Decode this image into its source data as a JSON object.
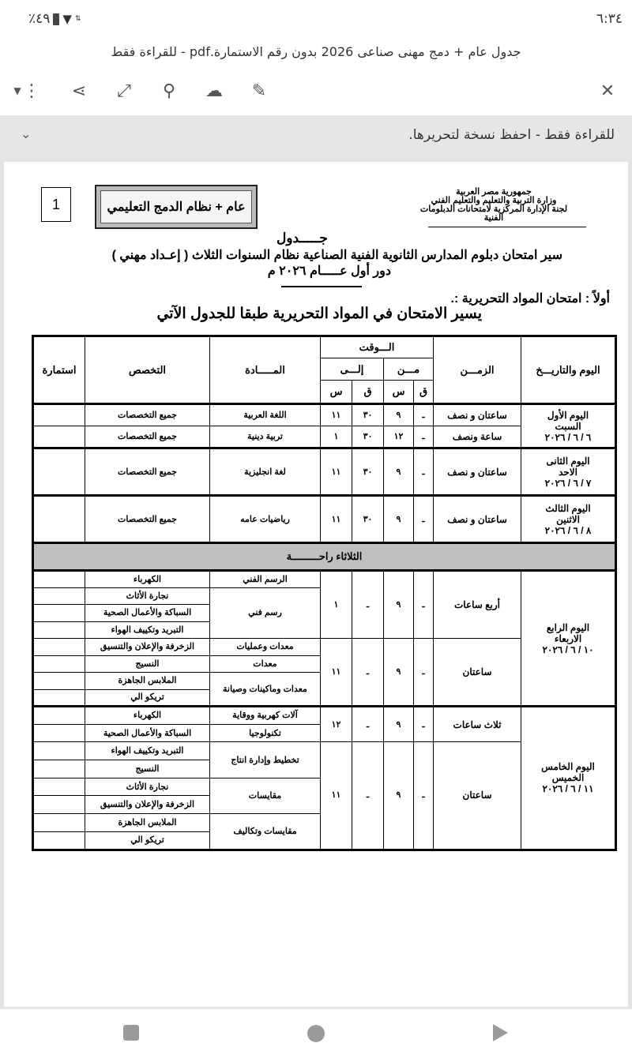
{
  "status_bar": {
    "time": "٦:٣٤",
    "battery": "٪٤٩"
  },
  "viewer": {
    "file_title": "جدول عام + دمج مهنى صناعى 2026 بدون رقم الاستمارة.pdf - للقراءة فقط",
    "readonly_banner": "للقراءة فقط - احفظ نسخة لتحريرها.",
    "icons": [
      "close-icon",
      "edit-icon",
      "cloud-upload-icon",
      "search-icon",
      "fullscreen-icon",
      "share-icon",
      "more-icon",
      "dropdown-icon"
    ]
  },
  "document": {
    "header_lines": [
      "جمهورية مصر العربية",
      "وزارة التربية والتعليم والتعليم الفني",
      "لجنة الإدارة المركزية لامتحانات الدبلومات الفنية"
    ],
    "badge": "عام + نظام الدمج التعليمي",
    "page_number": "1",
    "title": "جـــــدول",
    "subtitle": "سير امتحان دبلوم المدارس الثانوية الفنية الصناعية  نظام السنوات الثلاث ( إعـداد مهني )",
    "session": "دور أول  عـــــام  ٢٠٢٦ م",
    "section": "أولاً : امتحان المواد التحريرية :.",
    "intro": "يسير الامتحان في المواد التحريرية طبقا للجدول الآتي"
  },
  "table": {
    "headers": {
      "day": "اليوم والتاريـــخ",
      "duration": "الزمـــن",
      "time": "الـــوقت",
      "from": "مـــن",
      "to": "إلـــى",
      "min": "ق",
      "hour": "س",
      "subject": "المـــــادة",
      "spec": "التخصص",
      "form": "استمارة"
    },
    "rest_day": "الثلاثاء راحـــــــــة",
    "days": [
      {
        "label": [
          "اليوم الأول",
          "السبت",
          "٦ / ٦ / ٢٠٢٦"
        ],
        "groups": [
          {
            "duration": "ساعتان و نصف",
            "from_h": "٩",
            "from_m": "ـ",
            "to_h": "١١",
            "to_m": "٣٠",
            "subjects": [
              {
                "name": "اللغة العربية",
                "specs": [
                  "جميع التخصصات"
                ]
              }
            ]
          },
          {
            "duration": "ساعة ونصف",
            "from_h": "١٢",
            "from_m": "ـ",
            "to_h": "١",
            "to_m": "٣٠",
            "subjects": [
              {
                "name": "تربية دينية",
                "specs": [
                  "جميع التخصصات"
                ]
              }
            ]
          }
        ]
      },
      {
        "label": [
          "اليوم الثانى",
          "الاحد",
          "٧ / ٦ / ٢٠٢٦"
        ],
        "groups": [
          {
            "duration": "ساعتان و نصف",
            "from_h": "٩",
            "from_m": "ـ",
            "to_h": "١١",
            "to_m": "٣٠",
            "subjects": [
              {
                "name": "لغة انجليزية",
                "specs": [
                  "جميع التخصصات"
                ]
              }
            ]
          }
        ]
      },
      {
        "label": [
          "اليوم الثالث",
          "الاثنين",
          "٨ / ٦ / ٢٠٢٦"
        ],
        "groups": [
          {
            "duration": "ساعتان و نصف",
            "from_h": "٩",
            "from_m": "ـ",
            "to_h": "١١",
            "to_m": "٣٠",
            "subjects": [
              {
                "name": "رياضيات عامه",
                "specs": [
                  "جميع التخصصات"
                ]
              }
            ]
          }
        ]
      },
      {
        "label": [
          "اليوم الرابع",
          "الاربعاء",
          "١٠ / ٦ / ٢٠٢٦"
        ],
        "groups": [
          {
            "duration": "أربع ساعات",
            "from_h": "٩",
            "from_m": "ـ",
            "to_h": "١",
            "to_m": "ـ",
            "subjects": [
              {
                "name": "الرسم الفني",
                "specs": [
                  "الكهرباء"
                ]
              },
              {
                "name": "رسم فني",
                "specs": [
                  "نجارة الأثاث",
                  "السباكة والأعمال الصحية",
                  "التبريد وتكييف الهواء"
                ]
              }
            ]
          },
          {
            "duration": "ساعتان",
            "from_h": "٩",
            "from_m": "ـ",
            "to_h": "١١",
            "to_m": "ـ",
            "subjects": [
              {
                "name": "معدات وعمليات",
                "specs": [
                  "الزخرفة والإعلان والتنسيق"
                ]
              },
              {
                "name": "معدات",
                "specs": [
                  "النسيج"
                ]
              },
              {
                "name": "معدات وماكينات وصيانة",
                "specs": [
                  "الملابس الجاهزة",
                  "تريكو الي"
                ]
              }
            ]
          }
        ]
      },
      {
        "label": [
          "اليوم الخامس",
          "الخميس",
          "١١ / ٦ / ٢٠٢٦"
        ],
        "groups": [
          {
            "duration": "ثلاث ساعات",
            "from_h": "٩",
            "from_m": "ـ",
            "to_h": "١٢",
            "to_m": "ـ",
            "subjects": [
              {
                "name": "آلات كهربية ووقاية",
                "specs": [
                  "الكهرباء"
                ]
              },
              {
                "name": "تكنولوجيا",
                "specs": [
                  "السباكة والأعمال الصحية"
                ]
              }
            ]
          },
          {
            "duration": "ساعتان",
            "from_h": "٩",
            "from_m": "ـ",
            "to_h": "١١",
            "to_m": "ـ",
            "subjects": [
              {
                "name": "تخطيط وإدارة انتاج",
                "specs": [
                  "التبريد وتكييف الهواء",
                  "النسيج"
                ]
              },
              {
                "name": "مقايسات",
                "specs": [
                  "نجارة الأثاث",
                  "الزخرفة والإعلان والتنسيق"
                ]
              },
              {
                "name": "مقايسات وتكاليف",
                "specs": [
                  "الملابس الجاهزة",
                  "تريكو الي"
                ]
              }
            ]
          }
        ]
      }
    ]
  }
}
